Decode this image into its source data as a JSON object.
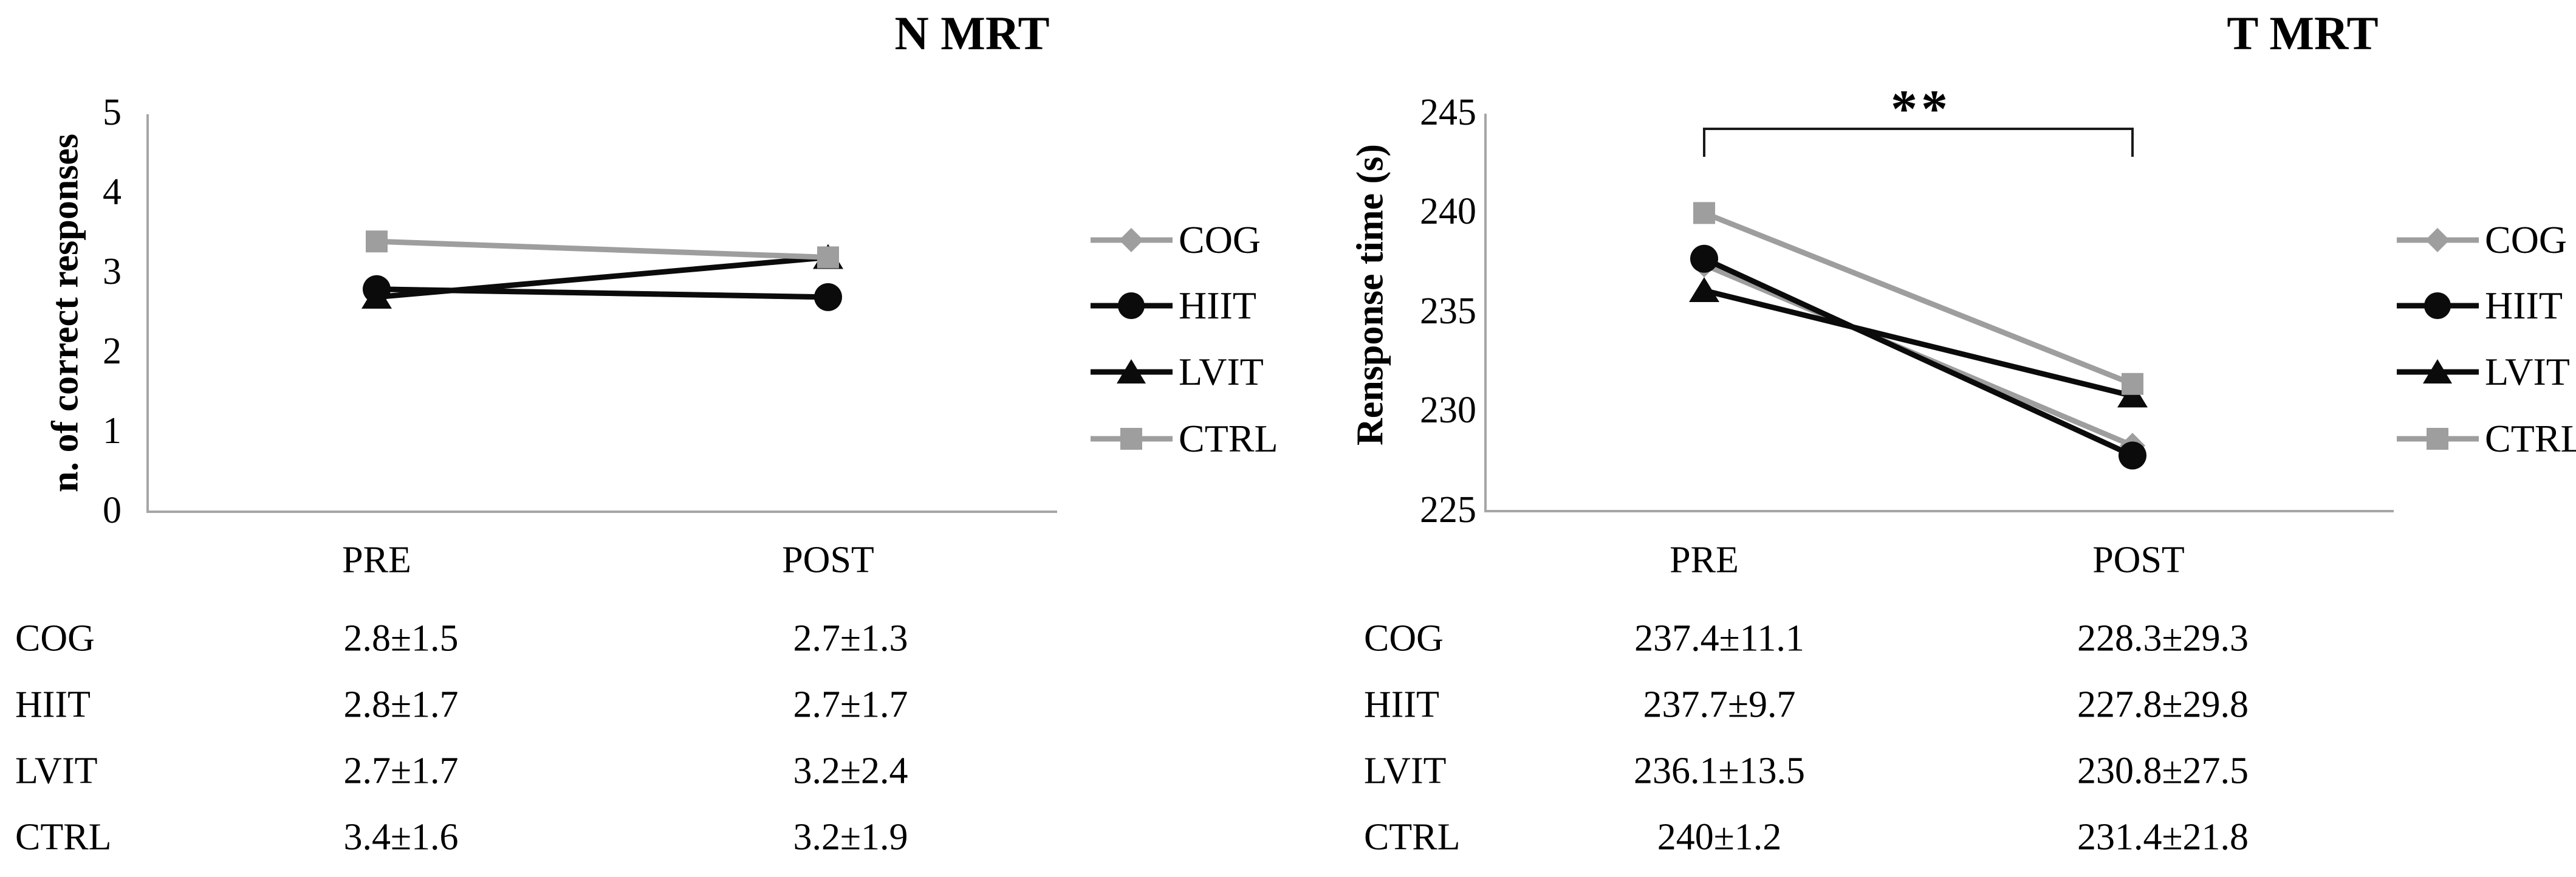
{
  "colors": {
    "series_gray": "#9E9E9E",
    "series_black": "#0B0B0B",
    "axis_line": "#A6A6A6",
    "bracket": "#1A1A1A",
    "text": "#000000",
    "background": "#FFFFFF"
  },
  "chart_data": [
    {
      "type": "line",
      "title": "N MRT",
      "ylabel": "n. of correct responses",
      "xlabel": "",
      "ylim": [
        0,
        5
      ],
      "yticks": [
        "0",
        "1",
        "2",
        "3",
        "4",
        "5"
      ],
      "categories": [
        "PRE",
        "POST"
      ],
      "grid": false,
      "legend_position": "right",
      "series": [
        {
          "name": "COG",
          "marker": "diamond",
          "color": "#9E9E9E",
          "values": [
            2.8,
            2.7
          ]
        },
        {
          "name": "HIIT",
          "marker": "circle",
          "color": "#0B0B0B",
          "values": [
            2.8,
            2.7
          ]
        },
        {
          "name": "LVIT",
          "marker": "triangle",
          "color": "#0B0B0B",
          "values": [
            2.7,
            3.2
          ]
        },
        {
          "name": "CTRL",
          "marker": "square",
          "color": "#9E9E9E",
          "values": [
            3.4,
            3.2
          ]
        }
      ],
      "table": [
        {
          "label": "COG",
          "pre": "2.8±1.5",
          "post": "2.7±1.3"
        },
        {
          "label": "HIIT",
          "pre": "2.8±1.7",
          "post": "2.7±1.7"
        },
        {
          "label": "LVIT",
          "pre": "2.7±1.7",
          "post": "3.2±2.4"
        },
        {
          "label": "CTRL",
          "pre": "3.4±1.6",
          "post": "3.2±1.9"
        }
      ]
    },
    {
      "type": "line",
      "title": "T MRT",
      "ylabel": "Rensponse time (s)",
      "xlabel": "",
      "ylim": [
        225,
        245
      ],
      "yticks": [
        "225",
        "230",
        "235",
        "240",
        "245"
      ],
      "categories": [
        "PRE",
        "POST"
      ],
      "grid": false,
      "legend_position": "right",
      "annotation": {
        "text": "**",
        "between": [
          "PRE",
          "POST"
        ]
      },
      "series": [
        {
          "name": "COG",
          "marker": "diamond",
          "color": "#9E9E9E",
          "values": [
            237.4,
            228.3
          ]
        },
        {
          "name": "HIIT",
          "marker": "circle",
          "color": "#0B0B0B",
          "values": [
            237.7,
            227.8
          ]
        },
        {
          "name": "LVIT",
          "marker": "triangle",
          "color": "#0B0B0B",
          "values": [
            236.1,
            230.8
          ]
        },
        {
          "name": "CTRL",
          "marker": "square",
          "color": "#9E9E9E",
          "values": [
            240,
            231.4
          ]
        }
      ],
      "table": [
        {
          "label": "COG",
          "pre": "237.4±11.1",
          "post": "228.3±29.3"
        },
        {
          "label": "HIIT",
          "pre": "237.7±9.7",
          "post": "227.8±29.8"
        },
        {
          "label": "LVIT",
          "pre": "236.1±13.5",
          "post": "230.8±27.5"
        },
        {
          "label": "CTRL",
          "pre": "240±1.2",
          "post": "231.4±21.8"
        }
      ]
    }
  ]
}
